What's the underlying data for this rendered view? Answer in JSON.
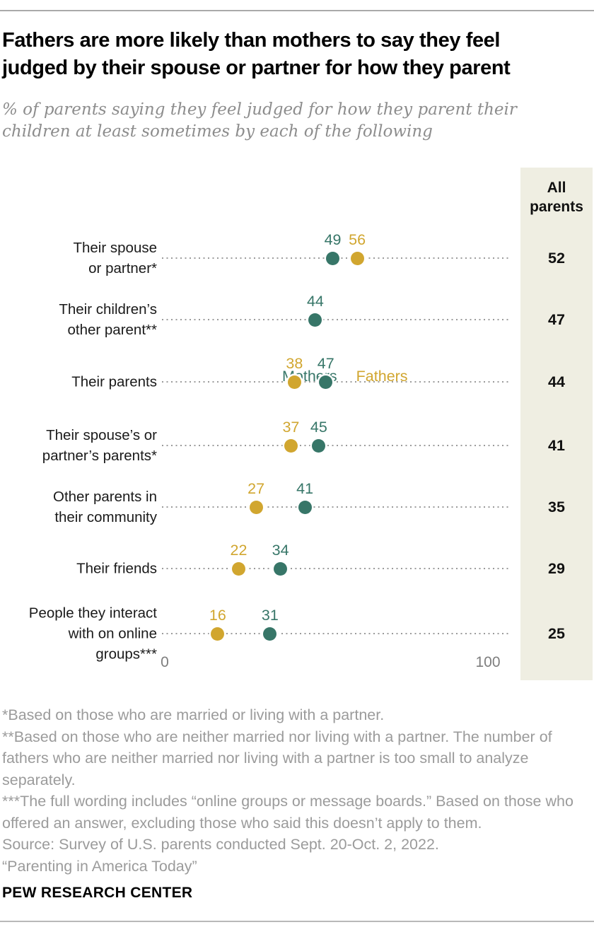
{
  "header": {
    "title_lines": [
      "Fathers are more likely than mothers to say they feel",
      "judged by their spouse or partner for how they parent"
    ],
    "subtitle_lines": [
      "% of parents saying they feel judged for how they parent their",
      "children at least sometimes by each of the following"
    ]
  },
  "colors": {
    "mothers": "#377668",
    "fathers": "#D1A62F",
    "panel": "#EFEEE2"
  },
  "chart_data": {
    "type": "scatter",
    "variant": "paired-dot-plot",
    "title": "Fathers are more likely than mothers to say they feel judged by their spouse or partner for how they parent",
    "xlabel": "",
    "ylabel": "",
    "x_axis": {
      "min": 0,
      "max": 100,
      "tick_labels": [
        "0",
        "100"
      ],
      "grid": "dotted-leader-per-row"
    },
    "legend": [
      {
        "label": "Mothers",
        "color": "#377668"
      },
      {
        "label": "Fathers",
        "color": "#D1A62F"
      }
    ],
    "legend_position": "top-center",
    "panel_header_lines": [
      "All",
      "parents"
    ],
    "rows": [
      {
        "label_lines": [
          "Their spouse",
          "or partner*"
        ],
        "mothers": 49,
        "fathers": 56,
        "all_parents": 52
      },
      {
        "label_lines": [
          "Their children’s",
          "other parent**"
        ],
        "mothers": 44,
        "fathers": null,
        "all_parents": 47
      },
      {
        "label_lines": [
          "Their parents"
        ],
        "mothers": 47,
        "fathers": 38,
        "all_parents": 44
      },
      {
        "label_lines": [
          "Their spouse’s or",
          "partner’s parents*"
        ],
        "mothers": 45,
        "fathers": 37,
        "all_parents": 41
      },
      {
        "label_lines": [
          "Other parents in",
          "their community"
        ],
        "mothers": 41,
        "fathers": 27,
        "all_parents": 35
      },
      {
        "label_lines": [
          "Their friends"
        ],
        "mothers": 34,
        "fathers": 22,
        "all_parents": 29
      },
      {
        "label_lines": [
          "People they interact",
          "with on online",
          "groups***"
        ],
        "mothers": 31,
        "fathers": 16,
        "all_parents": 25
      }
    ]
  },
  "notes": [
    "*Based on those who are married or living with a partner.",
    "**Based on those who are neither married nor living with a partner. The number of fathers who are neither married nor living with a partner is too small to analyze separately.",
    "***The full wording includes “online groups or message boards.” Based on those who offered an answer, excluding those who said this doesn’t apply to them."
  ],
  "source": "Source: Survey of U.S. parents conducted Sept. 20-Oct. 2, 2022.",
  "report_title": "“Parenting in America Today”",
  "footer": {
    "brand": "PEW RESEARCH CENTER"
  }
}
